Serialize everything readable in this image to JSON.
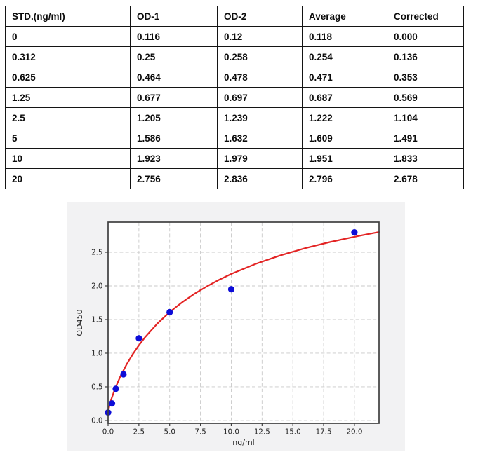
{
  "table": {
    "headers": [
      "STD.(ng/ml)",
      "OD-1",
      "OD-2",
      "Average",
      "Corrected"
    ],
    "rows": [
      [
        "0",
        "0.116",
        "0.12",
        "0.118",
        "0.000"
      ],
      [
        "0.312",
        "0.25",
        "0.258",
        "0.254",
        "0.136"
      ],
      [
        "0.625",
        "0.464",
        "0.478",
        "0.471",
        "0.353"
      ],
      [
        "1.25",
        "0.677",
        "0.697",
        "0.687",
        "0.569"
      ],
      [
        "2.5",
        "1.205",
        "1.239",
        "1.222",
        "1.104"
      ],
      [
        "5",
        "1.586",
        "1.632",
        "1.609",
        "1.491"
      ],
      [
        "10",
        "1.923",
        "1.979",
        "1.951",
        "1.833"
      ],
      [
        "20",
        "2.756",
        "2.836",
        "2.796",
        "2.678"
      ]
    ]
  },
  "chart_data": {
    "type": "scatter",
    "title": "",
    "xlabel": "ng/ml",
    "ylabel": "OD450",
    "xlim": [
      0,
      22
    ],
    "ylim": [
      -0.042,
      2.948
    ],
    "xticks": [
      0,
      2.5,
      5,
      7.5,
      10,
      12.5,
      15,
      17.5,
      20
    ],
    "xtick_labels": [
      "0.0",
      "2.5",
      "5.0",
      "7.5",
      "10.0",
      "12.5",
      "15.0",
      "17.5",
      "20.0"
    ],
    "yticks": [
      0,
      0.5,
      1,
      1.5,
      2,
      2.5
    ],
    "ytick_labels": [
      "0.0",
      "0.5",
      "1.0",
      "1.5",
      "2.0",
      "2.5"
    ],
    "grid": "dashed",
    "legend": "none",
    "figure_bg": "#f2f2f3",
    "plot_bg": "#ffffff",
    "grid_color": "#c9c9c9",
    "spine_color": "#3f3f3f",
    "series": [
      {
        "name": "standards-scatter",
        "type": "scatter",
        "color": "#0d0dd8",
        "x": [
          0,
          0.312,
          0.625,
          1.25,
          2.5,
          5,
          10,
          20
        ],
        "y": [
          0.118,
          0.254,
          0.471,
          0.687,
          1.222,
          1.609,
          1.951,
          2.796
        ]
      },
      {
        "name": "fit-curve",
        "type": "line",
        "color": "#e32424",
        "points": [
          [
            0,
            0.13
          ],
          [
            0.1,
            0.214
          ],
          [
            0.2,
            0.279
          ],
          [
            0.3,
            0.337
          ],
          [
            0.5,
            0.44
          ],
          [
            0.75,
            0.553
          ],
          [
            1,
            0.655
          ],
          [
            1.5,
            0.832
          ],
          [
            2,
            0.984
          ],
          [
            2.5,
            1.118
          ],
          [
            3,
            1.236
          ],
          [
            4,
            1.44
          ],
          [
            5,
            1.611
          ],
          [
            6,
            1.755
          ],
          [
            7,
            1.882
          ],
          [
            8,
            1.992
          ],
          [
            9,
            2.09
          ],
          [
            10,
            2.178
          ],
          [
            12,
            2.328
          ],
          [
            14,
            2.454
          ],
          [
            16,
            2.56
          ],
          [
            18,
            2.651
          ],
          [
            20,
            2.73
          ],
          [
            22,
            2.801
          ]
        ]
      }
    ]
  }
}
